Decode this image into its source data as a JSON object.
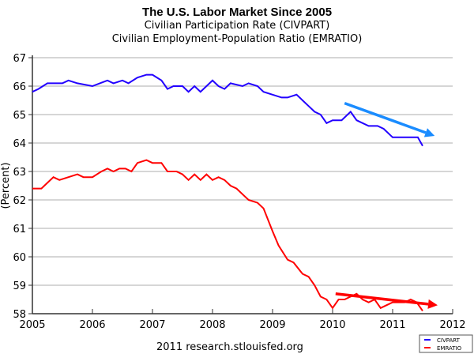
{
  "chart_data": {
    "type": "line",
    "title": "The U.S. Labor Market Since 2005",
    "subtitles": [
      "Civilian Participation Rate (CIVPART)",
      "Civilian Employment-Population Ratio (EMRATIO)"
    ],
    "xlabel": "",
    "ylabel": "(Percent)",
    "xlim": [
      2005,
      2012
    ],
    "ylim": [
      58,
      67
    ],
    "xticks": [
      "2005",
      "2006",
      "2007",
      "2008",
      "2009",
      "2010",
      "2011",
      "2012"
    ],
    "yticks": [
      "58",
      "59",
      "60",
      "61",
      "62",
      "63",
      "64",
      "65",
      "66",
      "67"
    ],
    "grid": true,
    "legend_position": "bottom-right",
    "series": [
      {
        "name": "CIVPART",
        "color": "#2200ff",
        "x": [
          2005.0,
          2005.1,
          2005.25,
          2005.5,
          2005.6,
          2005.75,
          2006.0,
          2006.25,
          2006.35,
          2006.5,
          2006.6,
          2006.75,
          2006.9,
          2007.0,
          2007.15,
          2007.25,
          2007.35,
          2007.5,
          2007.6,
          2007.7,
          2007.8,
          2007.9,
          2008.0,
          2008.1,
          2008.2,
          2008.3,
          2008.5,
          2008.6,
          2008.75,
          2008.85,
          2009.0,
          2009.15,
          2009.25,
          2009.4,
          2009.5,
          2009.6,
          2009.7,
          2009.8,
          2009.9,
          2010.0,
          2010.15,
          2010.3,
          2010.4,
          2010.5,
          2010.6,
          2010.75,
          2010.85,
          2010.95,
          2011.0,
          2011.15,
          2011.3,
          2011.42,
          2011.5
        ],
        "values": [
          65.8,
          65.9,
          66.1,
          66.1,
          66.2,
          66.1,
          66.0,
          66.2,
          66.1,
          66.2,
          66.1,
          66.3,
          66.4,
          66.4,
          66.2,
          65.9,
          66.0,
          66.0,
          65.8,
          66.0,
          65.8,
          66.0,
          66.2,
          66.0,
          65.9,
          66.1,
          66.0,
          66.1,
          66.0,
          65.8,
          65.7,
          65.6,
          65.6,
          65.7,
          65.5,
          65.3,
          65.1,
          65.0,
          64.7,
          64.8,
          64.8,
          65.1,
          64.8,
          64.7,
          64.6,
          64.6,
          64.5,
          64.3,
          64.2,
          64.2,
          64.2,
          64.2,
          63.9
        ]
      },
      {
        "name": "EMRATIO",
        "color": "#ff0000",
        "x": [
          2005.0,
          2005.15,
          2005.25,
          2005.35,
          2005.45,
          2005.6,
          2005.75,
          2005.85,
          2006.0,
          2006.15,
          2006.25,
          2006.35,
          2006.45,
          2006.55,
          2006.65,
          2006.75,
          2006.9,
          2007.0,
          2007.15,
          2007.25,
          2007.4,
          2007.5,
          2007.6,
          2007.7,
          2007.8,
          2007.9,
          2008.0,
          2008.1,
          2008.2,
          2008.3,
          2008.4,
          2008.5,
          2008.6,
          2008.75,
          2008.85,
          2009.0,
          2009.1,
          2009.25,
          2009.35,
          2009.5,
          2009.6,
          2009.7,
          2009.8,
          2009.9,
          2010.0,
          2010.1,
          2010.2,
          2010.3,
          2010.4,
          2010.5,
          2010.6,
          2010.7,
          2010.8,
          2010.9,
          2011.0,
          2011.1,
          2011.2,
          2011.3,
          2011.4,
          2011.5
        ],
        "values": [
          62.4,
          62.4,
          62.6,
          62.8,
          62.7,
          62.8,
          62.9,
          62.8,
          62.8,
          63.0,
          63.1,
          63.0,
          63.1,
          63.1,
          63.0,
          63.3,
          63.4,
          63.3,
          63.3,
          63.0,
          63.0,
          62.9,
          62.7,
          62.9,
          62.7,
          62.9,
          62.7,
          62.8,
          62.7,
          62.5,
          62.4,
          62.2,
          62.0,
          61.9,
          61.7,
          60.9,
          60.4,
          59.9,
          59.8,
          59.4,
          59.3,
          59.0,
          58.6,
          58.5,
          58.2,
          58.5,
          58.5,
          58.6,
          58.7,
          58.5,
          58.4,
          58.5,
          58.2,
          58.3,
          58.4,
          58.4,
          58.4,
          58.5,
          58.4,
          58.1
        ]
      }
    ],
    "annotations": [
      {
        "type": "arrow",
        "color": "#1a8cff",
        "from": [
          2010.2,
          65.4
        ],
        "to": [
          2011.7,
          64.25
        ]
      },
      {
        "type": "arrow",
        "color": "#ff0000",
        "from": [
          2010.05,
          58.7
        ],
        "to": [
          2011.75,
          58.3
        ]
      }
    ]
  },
  "footer": "2011 research.stlouisfed.org"
}
